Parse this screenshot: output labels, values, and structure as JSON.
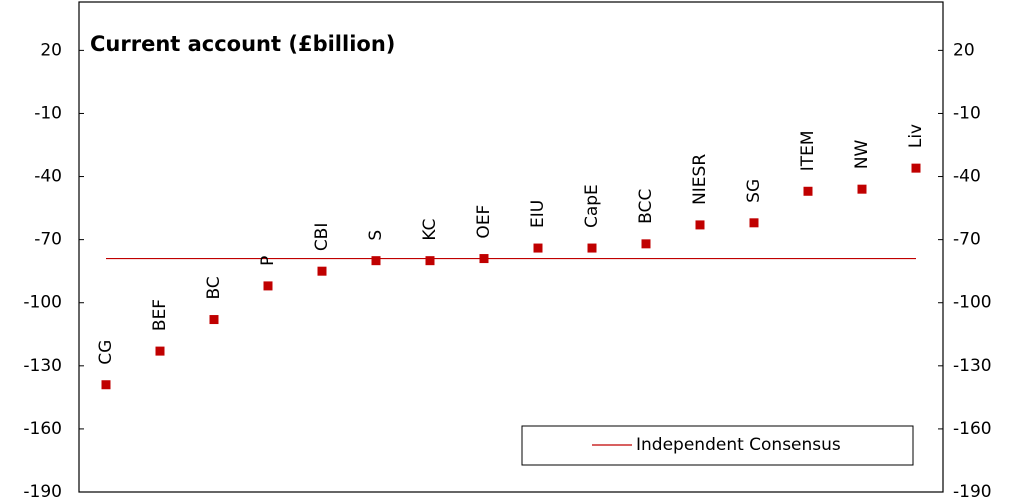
{
  "chart_data": {
    "type": "scatter",
    "title": "Current account (£billion)",
    "categories": [
      "CG",
      "BEF",
      "BC",
      "P",
      "CBI",
      "S",
      "KC",
      "OEF",
      "EIU",
      "CapE",
      "BCC",
      "NIESR",
      "SG",
      "ITEM",
      "NW",
      "Liv"
    ],
    "values": [
      -139,
      -123,
      -108,
      -92,
      -85,
      -80,
      -80,
      -79,
      -74,
      -74,
      -72,
      -63,
      -62,
      -47,
      -46,
      -36
    ],
    "color": "#c00000",
    "reference_line": {
      "name": "Independent Consensus",
      "value": -79,
      "color": "#c00000"
    },
    "ylim": [
      -190,
      43
    ],
    "yticks": [
      20,
      -10,
      -40,
      -70,
      -100,
      -130,
      -160,
      -190
    ],
    "legend": "lower right"
  }
}
